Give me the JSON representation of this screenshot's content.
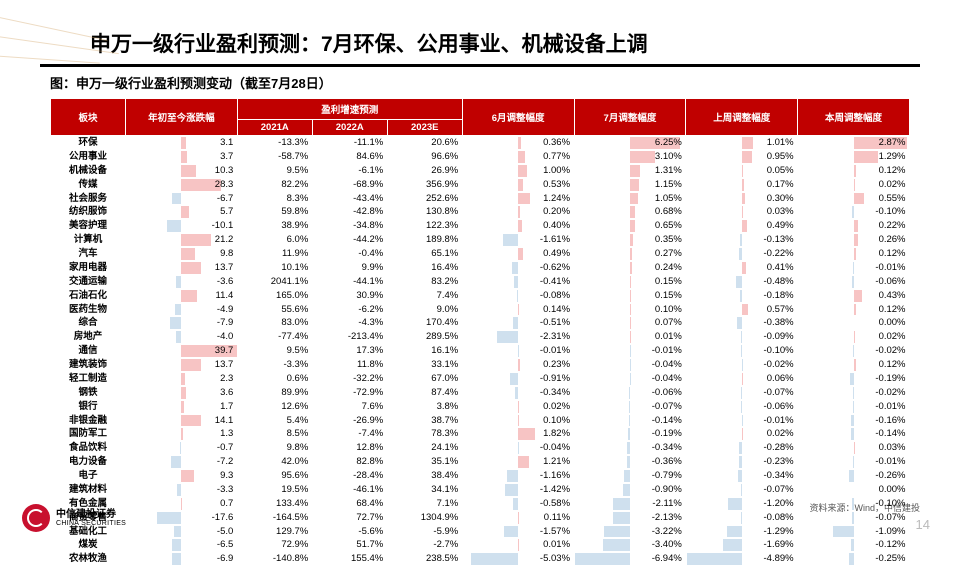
{
  "title": "申万一级行业盈利预测：7月环保、公用事业、机械设备上调",
  "subtitle": "图：申万一级行业盈利预测变动（截至7月28日）",
  "source": "资料来源：Wind，中信建投",
  "page": "14",
  "logo": {
    "cn": "中信建投证券",
    "en": "CHINA SECURITIES"
  },
  "headers": {
    "sector": "板块",
    "ytd": "年初至今涨跌幅",
    "forecast": "盈利增速预测",
    "y21": "2021A",
    "y22": "2022A",
    "y23": "2023E",
    "jun": "6月调整幅度",
    "jul": "7月调整幅度",
    "lastwk": "上周调整幅度",
    "thiswk": "本周调整幅度"
  },
  "colors": {
    "pos": "#f4b0b0",
    "neg": "#bfd5e8",
    "header": "#c00000"
  },
  "maxAbs": {
    "ytd": 40,
    "jun": 6,
    "jul": 7,
    "lastwk": 5,
    "thiswk": 3
  },
  "rows": [
    {
      "s": "环保",
      "ytd": 3.1,
      "y21": "-13.3%",
      "y22": "-11.1%",
      "y23": "20.6%",
      "jun": 0.36,
      "jul": 6.25,
      "lw": 1.01,
      "tw": 2.87
    },
    {
      "s": "公用事业",
      "ytd": 3.7,
      "y21": "-58.7%",
      "y22": "84.6%",
      "y23": "96.6%",
      "jun": 0.77,
      "jul": 3.1,
      "lw": 0.95,
      "tw": 1.29
    },
    {
      "s": "机械设备",
      "ytd": 10.3,
      "y21": "9.5%",
      "y22": "-6.1%",
      "y23": "26.9%",
      "jun": 1.0,
      "jul": 1.31,
      "lw": 0.05,
      "tw": 0.12
    },
    {
      "s": "传媒",
      "ytd": 28.3,
      "y21": "82.2%",
      "y22": "-68.9%",
      "y23": "356.9%",
      "jun": 0.53,
      "jul": 1.15,
      "lw": 0.17,
      "tw": 0.02
    },
    {
      "s": "社会服务",
      "ytd": -6.7,
      "y21": "8.3%",
      "y22": "-43.4%",
      "y23": "252.6%",
      "jun": 1.24,
      "jul": 1.05,
      "lw": 0.3,
      "tw": 0.55
    },
    {
      "s": "纺织服饰",
      "ytd": 5.7,
      "y21": "59.8%",
      "y22": "-42.8%",
      "y23": "130.8%",
      "jun": 0.2,
      "jul": 0.68,
      "lw": 0.03,
      "tw": -0.1
    },
    {
      "s": "美容护理",
      "ytd": -10.1,
      "y21": "38.9%",
      "y22": "-34.8%",
      "y23": "122.3%",
      "jun": 0.4,
      "jul": 0.65,
      "lw": 0.49,
      "tw": 0.22
    },
    {
      "s": "计算机",
      "ytd": 21.2,
      "y21": "6.0%",
      "y22": "-44.2%",
      "y23": "189.8%",
      "jun": -1.61,
      "jul": 0.35,
      "lw": -0.13,
      "tw": 0.26
    },
    {
      "s": "汽车",
      "ytd": 9.8,
      "y21": "11.9%",
      "y22": "-0.4%",
      "y23": "65.1%",
      "jun": 0.49,
      "jul": 0.27,
      "lw": -0.22,
      "tw": 0.12
    },
    {
      "s": "家用电器",
      "ytd": 13.7,
      "y21": "10.1%",
      "y22": "9.9%",
      "y23": "16.4%",
      "jun": -0.62,
      "jul": 0.24,
      "lw": 0.41,
      "tw": -0.01
    },
    {
      "s": "交通运输",
      "ytd": -3.6,
      "y21": "2041.1%",
      "y22": "-44.1%",
      "y23": "83.2%",
      "jun": -0.41,
      "jul": 0.15,
      "lw": -0.48,
      "tw": -0.06
    },
    {
      "s": "石油石化",
      "ytd": 11.4,
      "y21": "165.0%",
      "y22": "30.9%",
      "y23": "7.4%",
      "jun": -0.08,
      "jul": 0.15,
      "lw": -0.18,
      "tw": 0.43
    },
    {
      "s": "医药生物",
      "ytd": -4.9,
      "y21": "55.6%",
      "y22": "-6.2%",
      "y23": "9.0%",
      "jun": 0.14,
      "jul": 0.1,
      "lw": 0.57,
      "tw": 0.12
    },
    {
      "s": "综合",
      "ytd": -7.9,
      "y21": "83.0%",
      "y22": "-4.3%",
      "y23": "170.4%",
      "jun": -0.51,
      "jul": 0.07,
      "lw": -0.38,
      "tw": 0.0
    },
    {
      "s": "房地产",
      "ytd": -4.0,
      "y21": "-77.4%",
      "y22": "-213.4%",
      "y23": "289.5%",
      "jun": -2.31,
      "jul": 0.01,
      "lw": -0.09,
      "tw": 0.02
    },
    {
      "s": "通信",
      "ytd": 39.7,
      "y21": "9.5%",
      "y22": "17.3%",
      "y23": "16.1%",
      "jun": -0.01,
      "jul": -0.01,
      "lw": -0.1,
      "tw": -0.02
    },
    {
      "s": "建筑装饰",
      "ytd": 13.7,
      "y21": "-3.3%",
      "y22": "11.8%",
      "y23": "33.1%",
      "jun": 0.23,
      "jul": -0.04,
      "lw": -0.02,
      "tw": 0.12
    },
    {
      "s": "轻工制造",
      "ytd": 2.3,
      "y21": "0.6%",
      "y22": "-32.2%",
      "y23": "67.0%",
      "jun": -0.91,
      "jul": -0.04,
      "lw": 0.06,
      "tw": -0.19
    },
    {
      "s": "钢铁",
      "ytd": 3.6,
      "y21": "89.9%",
      "y22": "-72.9%",
      "y23": "87.4%",
      "jun": -0.34,
      "jul": -0.06,
      "lw": -0.07,
      "tw": -0.02
    },
    {
      "s": "银行",
      "ytd": 1.7,
      "y21": "12.6%",
      "y22": "7.6%",
      "y23": "3.8%",
      "jun": 0.02,
      "jul": -0.07,
      "lw": -0.06,
      "tw": -0.01
    },
    {
      "s": "非银金融",
      "ytd": 14.1,
      "y21": "5.4%",
      "y22": "-26.9%",
      "y23": "38.7%",
      "jun": 0.1,
      "jul": -0.14,
      "lw": -0.01,
      "tw": -0.16
    },
    {
      "s": "国防军工",
      "ytd": 1.3,
      "y21": "8.5%",
      "y22": "-7.4%",
      "y23": "78.3%",
      "jun": 1.82,
      "jul": -0.19,
      "lw": 0.02,
      "tw": -0.14
    },
    {
      "s": "食品饮料",
      "ytd": -0.7,
      "y21": "9.8%",
      "y22": "12.8%",
      "y23": "24.1%",
      "jun": -0.04,
      "jul": -0.34,
      "lw": -0.28,
      "tw": 0.03
    },
    {
      "s": "电力设备",
      "ytd": -7.2,
      "y21": "42.0%",
      "y22": "82.8%",
      "y23": "35.1%",
      "jun": 1.21,
      "jul": -0.36,
      "lw": -0.23,
      "tw": -0.01
    },
    {
      "s": "电子",
      "ytd": 9.3,
      "y21": "95.6%",
      "y22": "-28.4%",
      "y23": "38.4%",
      "jun": -1.16,
      "jul": -0.79,
      "lw": -0.34,
      "tw": -0.26
    },
    {
      "s": "建筑材料",
      "ytd": -3.3,
      "y21": "19.5%",
      "y22": "-46.1%",
      "y23": "34.1%",
      "jun": -1.42,
      "jul": -0.9,
      "lw": -0.07,
      "tw": 0.0
    },
    {
      "s": "有色金属",
      "ytd": 0.7,
      "y21": "133.4%",
      "y22": "68.4%",
      "y23": "7.1%",
      "jun": -0.58,
      "jul": -2.11,
      "lw": -1.2,
      "tw": -0.1
    },
    {
      "s": "商贸零售",
      "ytd": -17.6,
      "y21": "-164.5%",
      "y22": "72.7%",
      "y23": "1304.9%",
      "jun": 0.11,
      "jul": -2.13,
      "lw": -0.08,
      "tw": -0.07
    },
    {
      "s": "基础化工",
      "ytd": -5.0,
      "y21": "129.7%",
      "y22": "-5.6%",
      "y23": "-5.9%",
      "jun": -1.57,
      "jul": -3.22,
      "lw": -1.29,
      "tw": -1.09
    },
    {
      "s": "煤炭",
      "ytd": -6.5,
      "y21": "72.9%",
      "y22": "51.7%",
      "y23": "-2.7%",
      "jun": 0.01,
      "jul": -3.4,
      "lw": -1.69,
      "tw": -0.12
    },
    {
      "s": "农林牧渔",
      "ytd": -6.9,
      "y21": "-140.8%",
      "y22": "155.4%",
      "y23": "238.5%",
      "jun": -5.03,
      "jul": -6.94,
      "lw": -4.89,
      "tw": -0.25
    }
  ]
}
